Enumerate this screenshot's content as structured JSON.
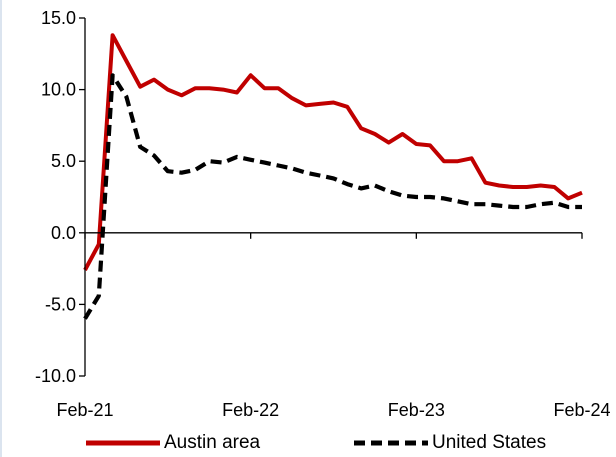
{
  "chart_data": {
    "type": "line",
    "title": "",
    "xlabel": "",
    "ylabel": "",
    "ylim": [
      -10,
      15
    ],
    "yticks": [
      "15.0",
      "10.0",
      "5.0",
      "0.0",
      "-5.0",
      "-10.0"
    ],
    "xticks": [
      "Feb-21",
      "Feb-22",
      "Feb-23",
      "Feb-24"
    ],
    "x": [
      "Feb-21",
      "Mar-21",
      "Apr-21",
      "May-21",
      "Jun-21",
      "Jul-21",
      "Aug-21",
      "Sep-21",
      "Oct-21",
      "Nov-21",
      "Dec-21",
      "Jan-22",
      "Feb-22",
      "Mar-22",
      "Apr-22",
      "May-22",
      "Jun-22",
      "Jul-22",
      "Aug-22",
      "Sep-22",
      "Oct-22",
      "Nov-22",
      "Dec-22",
      "Jan-23",
      "Feb-23",
      "Mar-23",
      "Apr-23",
      "May-23",
      "Jun-23",
      "Jul-23",
      "Aug-23",
      "Sep-23",
      "Oct-23",
      "Nov-23",
      "Dec-23",
      "Jan-24",
      "Feb-24"
    ],
    "grid": false,
    "legend_position": "bottom",
    "series": [
      {
        "name": "Austin area",
        "color": "#c00000",
        "style": "solid",
        "values": [
          -2.6,
          -0.8,
          13.8,
          12.0,
          10.2,
          10.7,
          10.0,
          9.6,
          10.1,
          10.1,
          10.0,
          9.8,
          11.0,
          10.1,
          10.1,
          9.4,
          8.9,
          9.0,
          9.1,
          8.8,
          7.3,
          6.9,
          6.3,
          6.9,
          6.2,
          6.1,
          5.0,
          5.0,
          5.2,
          3.5,
          3.3,
          3.2,
          3.2,
          3.3,
          3.2,
          2.4,
          2.8
        ]
      },
      {
        "name": "United States",
        "color": "#000000",
        "style": "dashed",
        "values": [
          -6.0,
          -4.4,
          11.0,
          9.5,
          6.0,
          5.4,
          4.3,
          4.2,
          4.4,
          5.0,
          4.9,
          5.3,
          5.1,
          4.9,
          4.7,
          4.5,
          4.2,
          4.0,
          3.8,
          3.4,
          3.1,
          3.3,
          2.9,
          2.6,
          2.5,
          2.5,
          2.4,
          2.2,
          2.0,
          2.0,
          1.9,
          1.8,
          1.8,
          2.0,
          2.1,
          1.8,
          1.8
        ]
      }
    ]
  }
}
